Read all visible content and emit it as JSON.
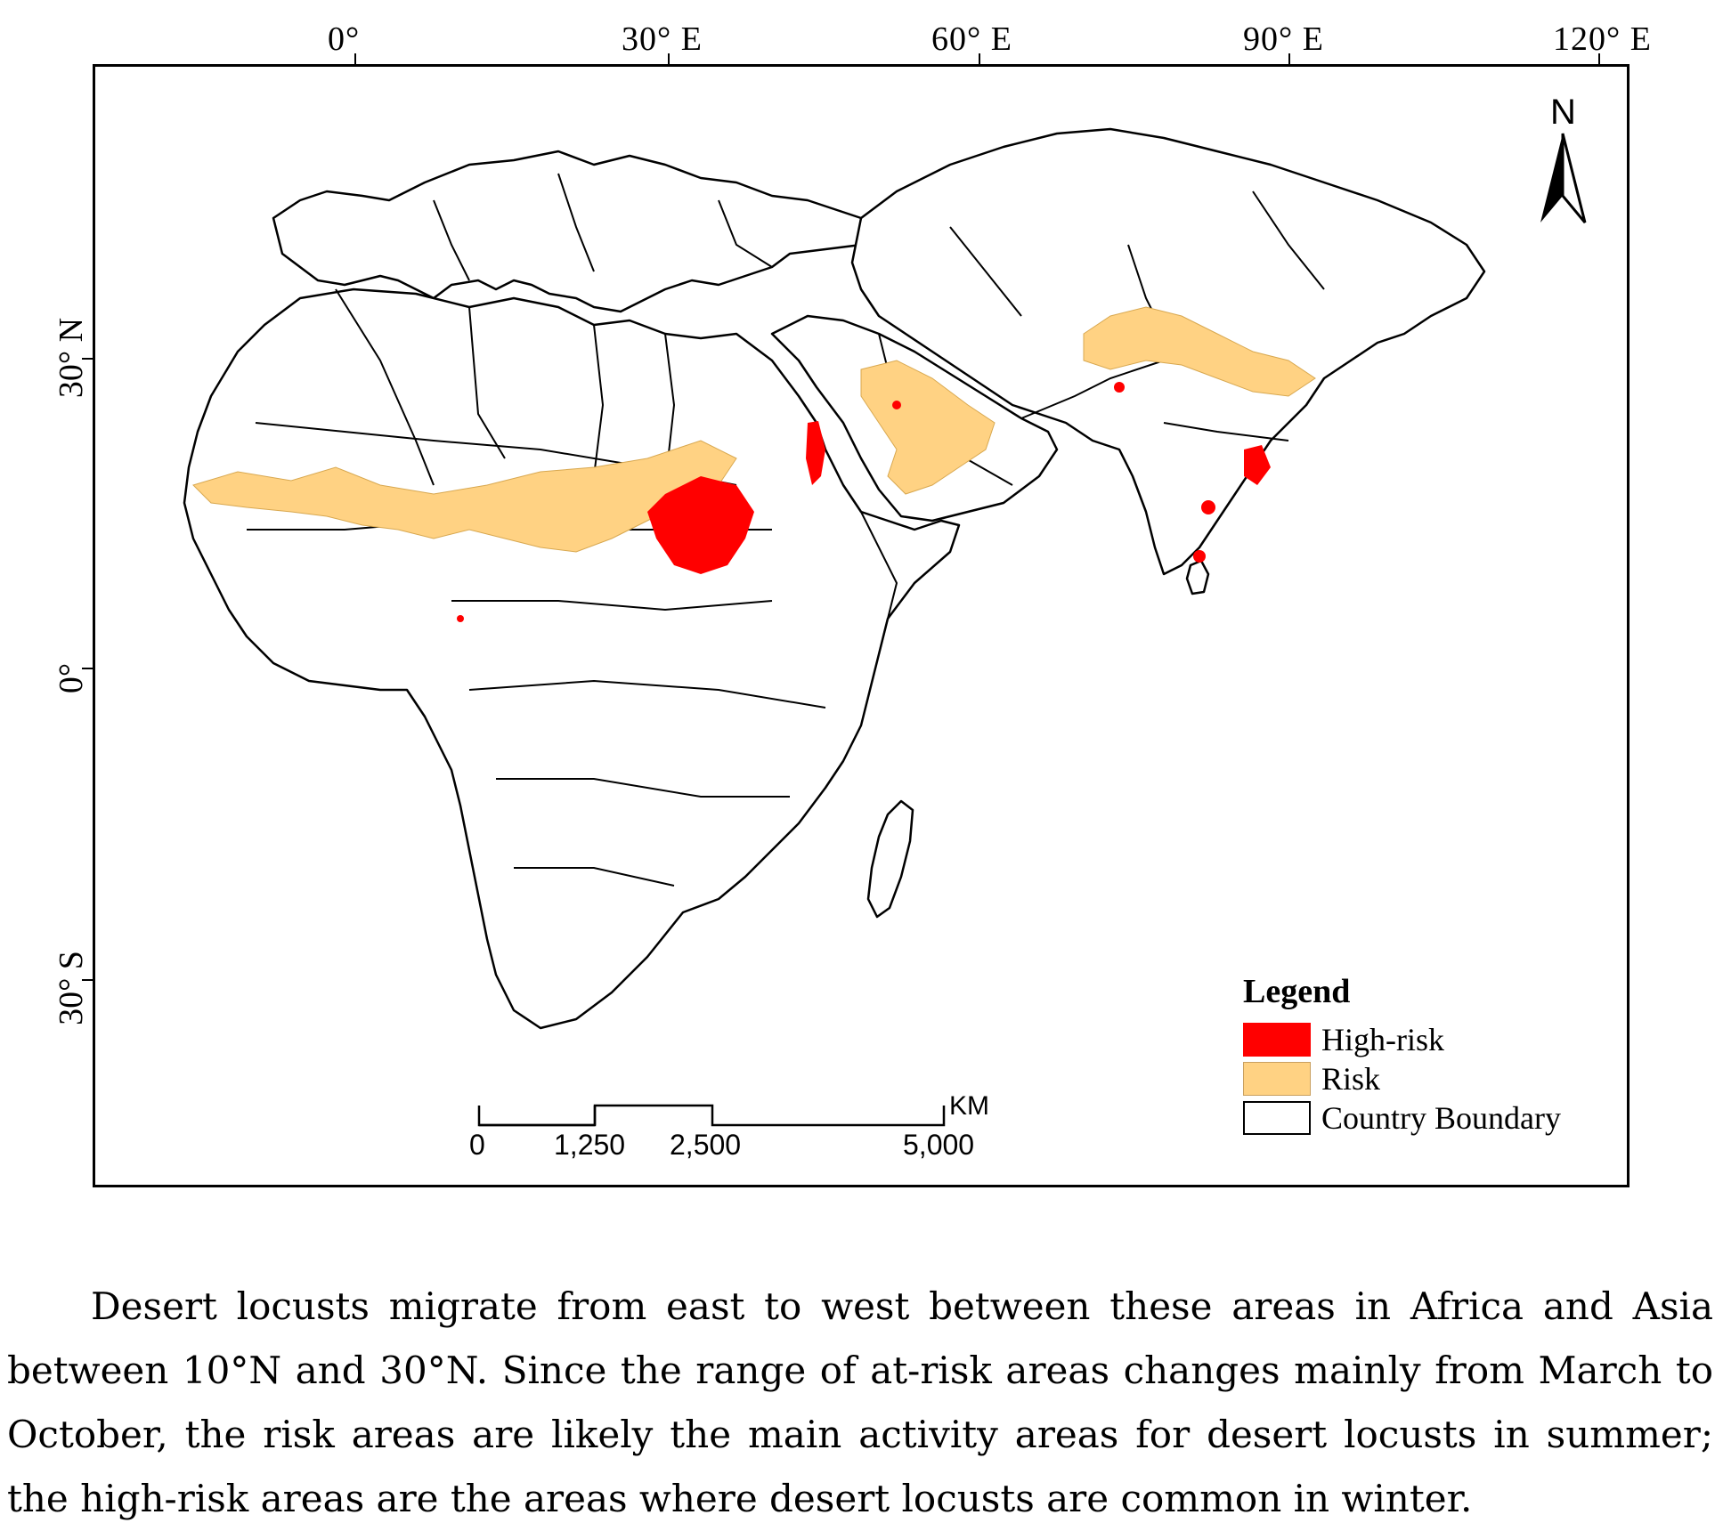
{
  "map": {
    "longitude_labels": [
      "0°",
      "30° E",
      "60° E",
      "90° E",
      "120° E"
    ],
    "latitude_labels": [
      "30° N",
      "0°",
      "30° S"
    ],
    "north_arrow": {
      "label": "N",
      "icon": "north-arrow-icon"
    },
    "legend": {
      "title": "Legend",
      "items": [
        {
          "label": "High-risk",
          "color": "#ff0000"
        },
        {
          "label": "Risk",
          "color": "#ffd283"
        },
        {
          "label": "Country Boundary",
          "color": "#ffffff"
        }
      ]
    },
    "scale_bar": {
      "unit": "KM",
      "labels": [
        "0",
        "1,250",
        "2,500",
        "5,000"
      ]
    },
    "colors": {
      "high_risk": "#ff0000",
      "risk": "#ffd283",
      "boundary": "#000000",
      "land": "#ffffff"
    }
  },
  "caption": {
    "text": "Desert locusts migrate from east to west between these areas in Africa and Asia between 10°N and 30°N. Since the range of at-risk areas changes mainly from March to October, the risk areas are likely the main activity areas for desert locusts in summer; the high-risk areas are the areas where desert locusts are common in winter."
  }
}
